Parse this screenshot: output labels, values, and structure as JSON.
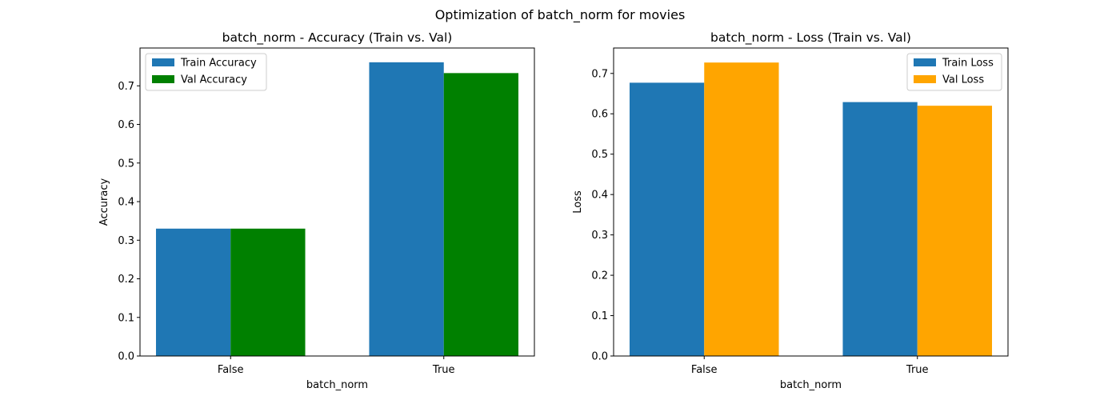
{
  "suptitle": "Optimization of batch_norm for movies",
  "chart_data": [
    {
      "type": "bar",
      "title": "batch_norm - Accuracy (Train vs. Val)",
      "xlabel": "batch_norm",
      "ylabel": "Accuracy",
      "categories": [
        "False",
        "True"
      ],
      "ylim": [
        0,
        0.798
      ],
      "yticks": [
        "0.0",
        "0.1",
        "0.2",
        "0.3",
        "0.4",
        "0.5",
        "0.6",
        "0.7"
      ],
      "legend_position": "upper-left",
      "series": [
        {
          "name": "Train Accuracy",
          "color": "#1f77b4",
          "values": [
            0.33,
            0.761
          ]
        },
        {
          "name": "Val Accuracy",
          "color": "#008000",
          "values": [
            0.33,
            0.733
          ]
        }
      ]
    },
    {
      "type": "bar",
      "title": "batch_norm - Loss (Train vs. Val)",
      "xlabel": "batch_norm",
      "ylabel": "Loss",
      "categories": [
        "False",
        "True"
      ],
      "ylim": [
        0,
        0.763
      ],
      "yticks": [
        "0.0",
        "0.1",
        "0.2",
        "0.3",
        "0.4",
        "0.5",
        "0.6",
        "0.7"
      ],
      "legend_position": "upper-right",
      "series": [
        {
          "name": "Train Loss",
          "color": "#1f77b4",
          "values": [
            0.677,
            0.629
          ]
        },
        {
          "name": "Val Loss",
          "color": "#ffa500",
          "values": [
            0.727,
            0.62
          ]
        }
      ]
    }
  ]
}
